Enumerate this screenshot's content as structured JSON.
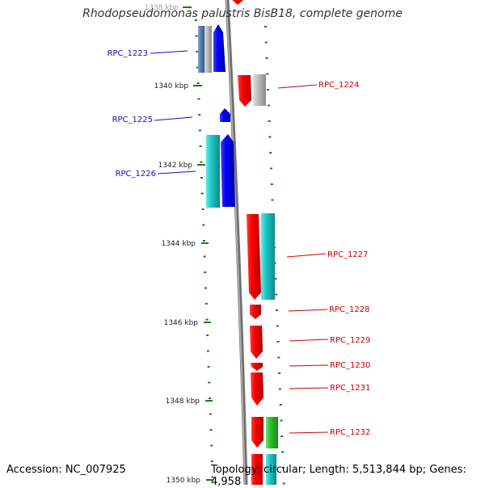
{
  "title": "Rhodopseudomonas palustris BisB18, complete genome",
  "footer": {
    "accession": "Accession: NC_007925",
    "summary": "Topology: circular; Length: 5,513,844 bp; Genes: 4,958"
  },
  "ruler": [
    "1338 kbp",
    "1340 kbp",
    "1342 kbp",
    "1344 kbp",
    "1346 kbp",
    "1348 kbp",
    "1350 kbp"
  ],
  "colors": {
    "left_label": "#1010c0",
    "right_label": "#cc0000",
    "ticks": "#1a7a1a",
    "backbone": "#888888"
  },
  "genes": [
    {
      "label": "RPC_1223",
      "side": "left"
    },
    {
      "label": "RPC_1224",
      "side": "right"
    },
    {
      "label": "RPC_1225",
      "side": "left"
    },
    {
      "label": "RPC_1226",
      "side": "left"
    },
    {
      "label": "RPC_1227",
      "side": "right"
    },
    {
      "label": "RPC_1228",
      "side": "right"
    },
    {
      "label": "RPC_1229",
      "side": "right"
    },
    {
      "label": "RPC_1230",
      "side": "right"
    },
    {
      "label": "RPC_1231",
      "side": "right"
    },
    {
      "label": "RPC_1232",
      "side": "right"
    }
  ]
}
